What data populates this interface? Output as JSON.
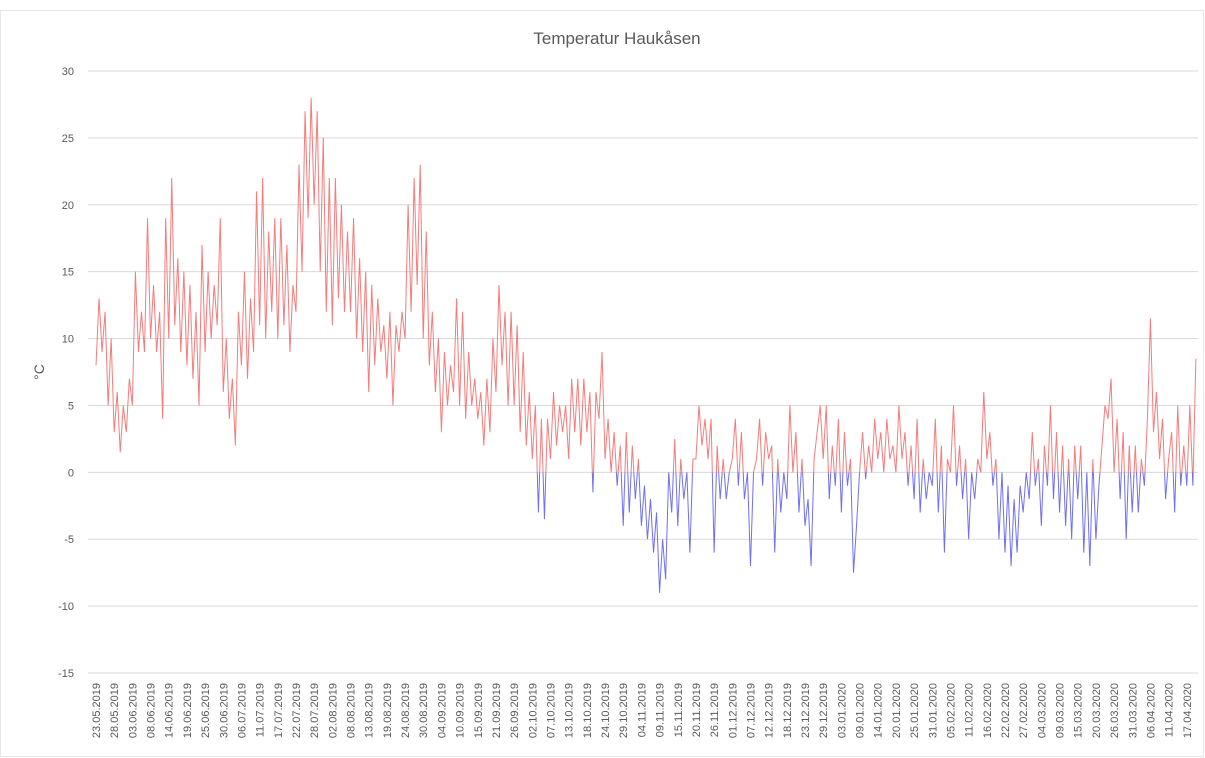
{
  "chart_data": {
    "type": "line",
    "title": "Temperatur Haukåsen",
    "y_label": "°C",
    "categories": [
      "23.05.2019",
      null,
      null,
      null,
      null,
      null,
      "28.05.2019",
      null,
      null,
      null,
      null,
      null,
      "03.06.2019",
      null,
      null,
      null,
      null,
      null,
      "08.06.2019",
      null,
      null,
      null,
      null,
      null,
      "14.06.2019",
      null,
      null,
      null,
      null,
      null,
      "19.06.2019",
      null,
      null,
      null,
      null,
      null,
      "25.06.2019",
      null,
      null,
      null,
      null,
      null,
      "30.06.2019",
      null,
      null,
      null,
      null,
      null,
      "06.07.2019",
      null,
      null,
      null,
      null,
      null,
      "11.07.2019",
      null,
      null,
      null,
      null,
      null,
      "17.07.2019",
      null,
      null,
      null,
      null,
      null,
      "22.07.2019",
      null,
      null,
      null,
      null,
      null,
      "28.07.2019",
      null,
      null,
      null,
      null,
      null,
      "02.08.2019",
      null,
      null,
      null,
      null,
      null,
      "08.08.2019",
      null,
      null,
      null,
      null,
      null,
      "13.08.2019",
      null,
      null,
      null,
      null,
      null,
      "19.08.2019",
      null,
      null,
      null,
      null,
      null,
      "24.08.2019",
      null,
      null,
      null,
      null,
      null,
      "30.08.2019",
      null,
      null,
      null,
      null,
      null,
      "04.09.2019",
      null,
      null,
      null,
      null,
      null,
      "10.09.2019",
      null,
      null,
      null,
      null,
      null,
      "15.09.2019",
      null,
      null,
      null,
      null,
      null,
      "21.09.2019",
      null,
      null,
      null,
      null,
      null,
      "26.09.2019",
      null,
      null,
      null,
      null,
      null,
      "02.10.2019",
      null,
      null,
      null,
      null,
      null,
      "07.10.2019",
      null,
      null,
      null,
      null,
      null,
      "13.10.2019",
      null,
      null,
      null,
      null,
      null,
      "18.10.2019",
      null,
      null,
      null,
      null,
      null,
      "24.10.2019",
      null,
      null,
      null,
      null,
      null,
      "29.10.2019",
      null,
      null,
      null,
      null,
      null,
      "04.11.2019",
      null,
      null,
      null,
      null,
      null,
      "09.11.2019",
      null,
      null,
      null,
      null,
      null,
      "15.11.2019",
      null,
      null,
      null,
      null,
      null,
      "20.11.2019",
      null,
      null,
      null,
      null,
      null,
      "26.11.2019",
      null,
      null,
      null,
      null,
      null,
      "01.12.2019",
      null,
      null,
      null,
      null,
      null,
      "07.12.2019",
      null,
      null,
      null,
      null,
      null,
      "12.12.2019",
      null,
      null,
      null,
      null,
      null,
      "18.12.2019",
      null,
      null,
      null,
      null,
      null,
      "23.12.2019",
      null,
      null,
      null,
      null,
      null,
      "29.12.2019",
      null,
      null,
      null,
      null,
      null,
      "03.01.2020",
      null,
      null,
      null,
      null,
      null,
      "09.01.2020",
      null,
      null,
      null,
      null,
      null,
      "14.01.2020",
      null,
      null,
      null,
      null,
      null,
      "20.01.2020",
      null,
      null,
      null,
      null,
      null,
      "25.01.2020",
      null,
      null,
      null,
      null,
      null,
      "31.01.2020",
      null,
      null,
      null,
      null,
      null,
      "05.02.2020",
      null,
      null,
      null,
      null,
      null,
      "11.02.2020",
      null,
      null,
      null,
      null,
      null,
      "16.02.2020",
      null,
      null,
      null,
      null,
      null,
      "22.02.2020",
      null,
      null,
      null,
      null,
      null,
      "27.02.2020",
      null,
      null,
      null,
      null,
      null,
      "04.03.2020",
      null,
      null,
      null,
      null,
      null,
      "09.03.2020",
      null,
      null,
      null,
      null,
      null,
      "15.03.2020",
      null,
      null,
      null,
      null,
      null,
      "20.03.2020",
      null,
      null,
      null,
      null,
      null,
      "26.03.2020",
      null,
      null,
      null,
      null,
      null,
      "31.03.2020",
      null,
      null,
      null,
      null,
      null,
      "06.04.2020",
      null,
      null,
      null,
      null,
      null,
      "11.04.2020",
      null,
      null,
      null,
      null,
      null,
      "17.04.2020",
      null,
      null,
      null
    ],
    "series": [
      {
        "color": "#f47c7c",
        "negative_color": "#7070f0",
        "values": [
          8,
          13,
          9,
          12,
          5,
          10,
          3,
          6,
          1.5,
          5,
          3,
          7,
          5,
          15,
          9,
          12,
          9,
          19,
          10,
          14,
          9,
          12,
          4,
          19,
          10,
          22,
          11,
          16,
          9,
          15,
          8,
          14,
          7,
          12,
          5,
          17,
          9,
          15,
          10,
          14,
          11,
          19,
          6,
          10,
          4,
          7,
          2,
          12,
          8,
          15,
          7,
          13,
          9,
          21,
          11,
          22,
          10,
          18,
          12,
          19,
          10,
          19,
          11,
          17,
          9,
          14,
          12,
          23,
          15,
          27,
          19,
          28,
          20,
          27,
          15,
          25,
          12,
          22,
          11,
          22,
          13,
          20,
          12,
          18,
          12,
          19,
          10,
          16,
          9,
          15,
          6,
          14,
          8,
          13,
          9,
          11,
          7,
          12,
          5,
          11,
          9,
          12,
          10,
          20,
          12,
          22,
          14,
          23,
          10,
          18,
          8,
          12,
          6,
          10,
          3,
          9,
          5,
          8,
          6,
          13,
          5,
          12,
          4,
          9,
          5,
          7,
          4,
          6,
          2,
          7,
          3,
          10,
          6,
          14,
          8,
          12,
          5,
          12,
          5,
          11,
          3,
          9,
          2,
          6,
          1,
          5,
          -3,
          4,
          -3.5,
          4,
          1,
          6,
          2,
          5,
          3,
          5,
          1,
          7,
          3,
          7,
          2,
          7,
          3,
          6,
          -1.5,
          6,
          4,
          9,
          1,
          4,
          0,
          3,
          -1,
          2,
          -4,
          3,
          -3,
          2,
          -2,
          1,
          -4,
          -1,
          -5,
          -2,
          -6,
          -3,
          -9,
          -5,
          -8,
          0,
          -3,
          2.5,
          -4,
          1,
          -2,
          0,
          -6,
          1,
          1,
          5,
          2,
          4,
          1,
          4,
          -6,
          2,
          -2,
          1,
          -2,
          0,
          1,
          4,
          -1,
          3,
          -2,
          0,
          -7,
          0,
          1,
          4,
          -1,
          3,
          1,
          2,
          -6,
          1,
          -3,
          0,
          -2,
          5,
          0,
          3,
          -3,
          1,
          -4,
          -2,
          -7,
          1,
          3,
          5,
          1,
          5,
          -2,
          2,
          -1,
          4,
          -3,
          3,
          -1,
          1,
          -7.5,
          -4,
          0,
          3,
          -0.5,
          2,
          0,
          4,
          1,
          3,
          0,
          4,
          1,
          2,
          0,
          5,
          1,
          3,
          -1,
          2,
          -2,
          4,
          -3,
          1,
          -2,
          0,
          -1,
          4,
          -3,
          2,
          -6,
          1,
          0,
          5,
          -1,
          2,
          -2,
          1,
          -5,
          0,
          -2,
          1,
          0,
          6,
          1,
          3,
          -1,
          1,
          -5,
          0,
          -6,
          -1,
          -7,
          -2,
          -6,
          -1,
          -3,
          0,
          -2,
          3,
          -1,
          1,
          -4,
          2,
          -1,
          5,
          -2,
          3,
          -3,
          2,
          -4,
          1,
          -5,
          2,
          -2,
          2,
          -6,
          0,
          -7,
          1,
          -5,
          -1,
          2,
          5,
          4,
          7,
          0,
          4,
          -2,
          3,
          -5,
          2,
          -3,
          2,
          -3,
          1,
          -1,
          4,
          11.5,
          3,
          6,
          1,
          4,
          -2,
          1,
          3,
          -3,
          5,
          -1,
          2,
          -1,
          5,
          -1,
          8.5
        ]
      }
    ],
    "ylim": [
      -15,
      30
    ],
    "yticks": [
      -15,
      -10,
      -5,
      0,
      5,
      10,
      15,
      20,
      25,
      30
    ],
    "grid": true
  }
}
